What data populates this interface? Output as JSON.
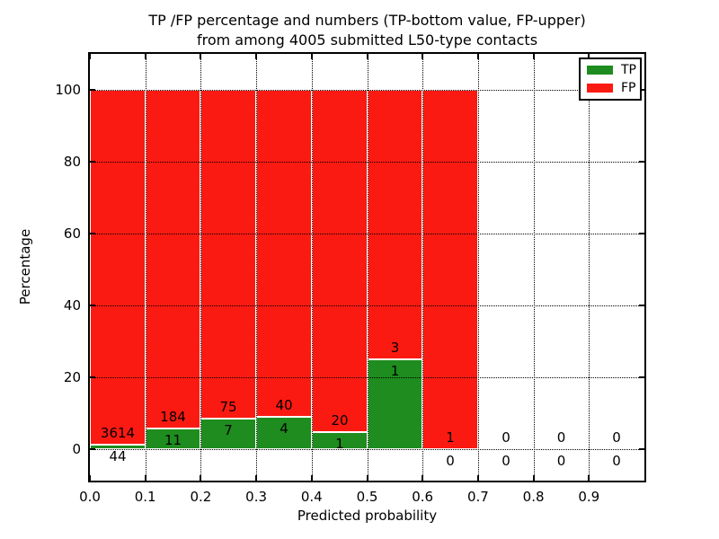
{
  "title": {
    "line1": "TP /FP percentage and numbers (TP-bottom value, FP-upper)",
    "line2": "from among 4005 submitted L50-type contacts"
  },
  "axes": {
    "ylabel": "Percentage",
    "xlabel": "Predicted probability",
    "ytick_labels": [
      "0",
      "20",
      "40",
      "60",
      "80",
      "100"
    ],
    "xtick_labels": [
      "0.0",
      "0.1",
      "0.2",
      "0.3",
      "0.4",
      "0.5",
      "0.6",
      "0.7",
      "0.8",
      "0.9"
    ]
  },
  "legend": {
    "position": "upper right",
    "entries": [
      {
        "label": "TP",
        "color": "#1e8c1e"
      },
      {
        "label": "FP",
        "color": "#fb1a12"
      }
    ]
  },
  "chart_data": {
    "type": "bar",
    "stacked": true,
    "grid": true,
    "title": "TP /FP percentage and numbers (TP-bottom value, FP-upper) from among 4005 submitted L50-type contacts",
    "xlabel": "Predicted probability",
    "ylabel": "Percentage",
    "total_submitted": 4005,
    "bin_edges": [
      0.0,
      0.1,
      0.2,
      0.3,
      0.4,
      0.5,
      0.6,
      0.7,
      0.8,
      0.9,
      1.0
    ],
    "categories": [
      "0.0-0.1",
      "0.1-0.2",
      "0.2-0.3",
      "0.3-0.4",
      "0.4-0.5",
      "0.5-0.6",
      "0.6-0.7",
      "0.7-0.8",
      "0.8-0.9",
      "0.9-1.0"
    ],
    "series": [
      {
        "name": "TP",
        "color": "#1e8c1e",
        "counts": [
          44,
          11,
          7,
          4,
          1,
          1,
          0,
          0,
          0,
          0
        ]
      },
      {
        "name": "FP",
        "color": "#fb1a12",
        "counts": [
          3614,
          184,
          75,
          40,
          20,
          3,
          1,
          0,
          0,
          0
        ]
      }
    ],
    "tp_percent": [
      1.2,
      5.64,
      8.54,
      9.09,
      4.76,
      25.0,
      0.0,
      null,
      null,
      null
    ],
    "fp_percent": [
      98.8,
      94.36,
      91.46,
      90.91,
      95.24,
      75.0,
      100.0,
      null,
      null,
      null
    ],
    "xtick_values": [
      0.0,
      0.1,
      0.2,
      0.3,
      0.4,
      0.5,
      0.6,
      0.7,
      0.8,
      0.9
    ],
    "ytick_values": [
      0,
      20,
      40,
      60,
      80,
      100
    ],
    "xlim": [
      0.0,
      1.0
    ],
    "ylim": [
      -10,
      110
    ],
    "legend_position": "upper right"
  }
}
